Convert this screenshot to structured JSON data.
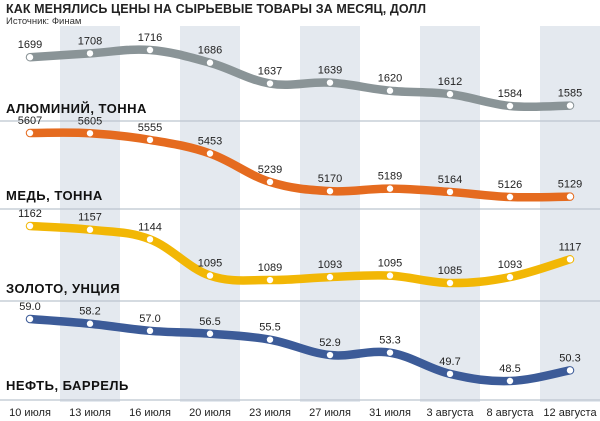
{
  "header": {
    "title": "КАК МЕНЯЛИСЬ ЦЕНЫ НА СЫРЬЕВЫЕ ТОВАРЫ ЗА МЕСЯЦ, ДОЛЛ",
    "source": "Источник: Финам"
  },
  "chart_data": {
    "type": "line",
    "title": "КАК МЕНЯЛИСЬ ЦЕНЫ НА СЫРЬЕВЫЕ ТОВАРЫ ЗА МЕСЯЦ, ДОЛЛ",
    "categories": [
      "10 июля",
      "13 июля",
      "16 июля",
      "20 июля",
      "23 июля",
      "27 июля",
      "31 июля",
      "3 августа",
      "8 августа",
      "12 августа"
    ],
    "grid": "alternating vertical column bands",
    "series": [
      {
        "name": "АЛЮМИНИЙ, ТОННА",
        "color": "#8a9497",
        "values": [
          1699,
          1708,
          1716,
          1686,
          1637,
          1639,
          1620,
          1612,
          1584,
          1585
        ],
        "labels": [
          "1699",
          "1708",
          "1716",
          "1686",
          "1637",
          "1639",
          "1620",
          "1612",
          "1584",
          "1585"
        ]
      },
      {
        "name": "МЕДЬ, ТОННА",
        "color": "#e56b1f",
        "values": [
          5607,
          5605,
          5555,
          5453,
          5239,
          5170,
          5189,
          5164,
          5126,
          5129
        ],
        "labels": [
          "5607",
          "5605",
          "5555",
          "5453",
          "5239",
          "5170",
          "5189",
          "5164",
          "5126",
          "5129"
        ]
      },
      {
        "name": "ЗОЛОТО, УНЦИЯ",
        "color": "#f2b705",
        "values": [
          1162,
          1157,
          1144,
          1095,
          1089,
          1093,
          1095,
          1085,
          1093,
          1117
        ],
        "labels": [
          "1162",
          "1157",
          "1144",
          "1095",
          "1089",
          "1093",
          "1095",
          "1085",
          "1093",
          "1117"
        ]
      },
      {
        "name": "НЕФТЬ, БАРРЕЛЬ",
        "color": "#3c5b98",
        "values": [
          59.0,
          58.2,
          57.0,
          56.5,
          55.5,
          52.9,
          53.3,
          49.7,
          48.5,
          50.3
        ],
        "labels": [
          "59.0",
          "58.2",
          "57.0",
          "56.5",
          "55.5",
          "52.9",
          "53.3",
          "49.7",
          "48.5",
          "50.3"
        ]
      }
    ]
  },
  "style": {
    "band_color": "#e4e9ef",
    "divider_color": "#bcc5cf"
  }
}
